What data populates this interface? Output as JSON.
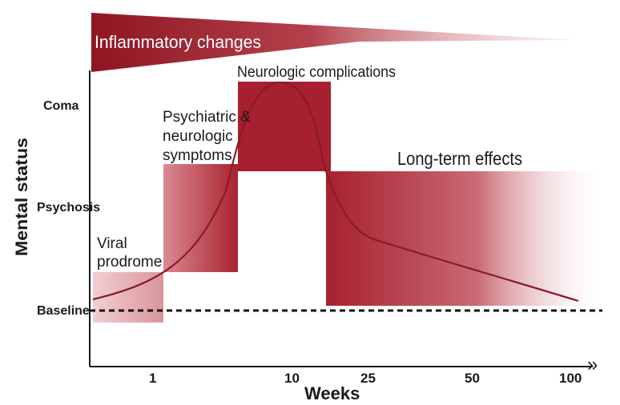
{
  "header": {
    "inflammatory_label": "Inflammatory changes"
  },
  "axes": {
    "y_title": "Mental status",
    "x_title": "Weeks",
    "y_levels": [
      "Coma",
      "Psychosis",
      "Baseline"
    ],
    "x_ticks": [
      "1",
      "10",
      "25",
      "50",
      "100"
    ],
    "x_arrow": "»"
  },
  "regions": {
    "viral": {
      "line1": "Viral",
      "line2": "prodrome"
    },
    "psych": {
      "line1": "Psychiatric &",
      "line2": "neurologic",
      "line3": "symptoms"
    },
    "neuro": {
      "label": "Neurologic complications"
    },
    "longterm": {
      "label": "Long-term effects"
    }
  },
  "colors": {
    "primary": "#a7202f",
    "dark": "#7d1722",
    "curve": "#8a1a26",
    "text": "#1a1a1a"
  }
}
